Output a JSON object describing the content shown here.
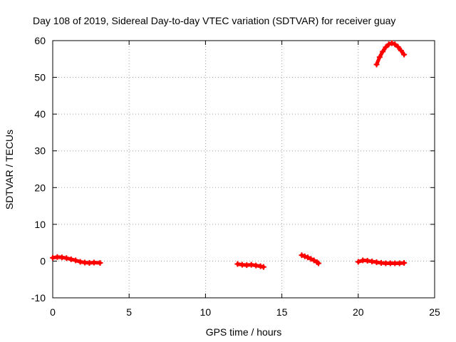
{
  "chart_data": {
    "type": "scatter",
    "title": "Day 108 of 2019, Sidereal Day-to-day VTEC variation (SDTVAR) for receiver guay",
    "xlabel": "GPS time / hours",
    "ylabel": "SDTVAR / TECUs",
    "xlim": [
      0,
      25
    ],
    "ylim": [
      -10,
      60
    ],
    "xticks": [
      0,
      5,
      10,
      15,
      20,
      25
    ],
    "yticks": [
      -10,
      0,
      10,
      20,
      30,
      40,
      50,
      60
    ],
    "grid": true,
    "marker": "plus",
    "color": "#ff0000",
    "series": [
      {
        "name": "SDTVAR",
        "segments": [
          {
            "x": [
              0.0,
              0.3,
              0.6,
              0.9,
              1.2,
              1.5,
              1.8,
              2.1,
              2.4,
              2.7,
              3.1
            ],
            "y": [
              0.9,
              1.1,
              1.0,
              0.8,
              0.5,
              0.2,
              -0.2,
              -0.4,
              -0.5,
              -0.4,
              -0.5
            ]
          },
          {
            "x": [
              12.1,
              12.4,
              12.7,
              13.0,
              13.3,
              13.6,
              13.8
            ],
            "y": [
              -0.8,
              -1.0,
              -1.1,
              -1.0,
              -1.2,
              -1.4,
              -1.6
            ]
          },
          {
            "x": [
              16.3,
              16.5,
              16.7,
              16.9,
              17.1,
              17.3,
              17.4
            ],
            "y": [
              1.6,
              1.3,
              1.0,
              0.6,
              0.2,
              -0.3,
              -0.6
            ]
          },
          {
            "x": [
              20.0,
              20.3,
              20.6,
              20.9,
              21.2,
              21.5,
              21.8,
              22.1,
              22.4,
              22.7,
              23.0
            ],
            "y": [
              -0.2,
              0.2,
              0.1,
              -0.1,
              -0.3,
              -0.5,
              -0.6,
              -0.6,
              -0.6,
              -0.6,
              -0.5
            ]
          },
          {
            "x": [
              21.2,
              21.4,
              21.6,
              21.8,
              22.0,
              22.2,
              22.4,
              22.6,
              22.8,
              23.0
            ],
            "y": [
              53.5,
              55.5,
              57.0,
              58.2,
              59.0,
              59.3,
              59.0,
              58.3,
              57.3,
              56.2
            ]
          }
        ]
      }
    ]
  }
}
